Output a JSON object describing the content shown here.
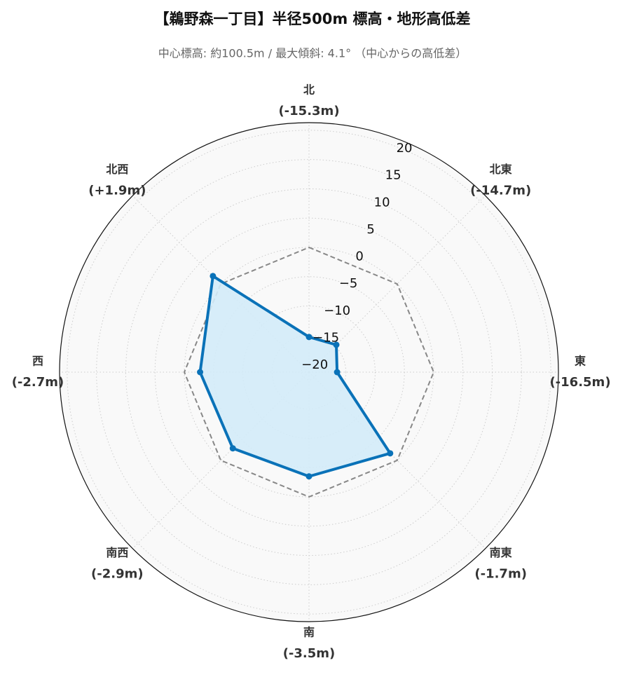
{
  "chart_data": {
    "type": "radar",
    "title": "【鵜野森一丁目】半径500m 標高・地形高低差",
    "subtitle": "中心標高: 約100.5m / 最大傾斜: 4.1°  （中心からの高低差）",
    "categories": [
      "北",
      "北東",
      "東",
      "南東",
      "南",
      "南西",
      "西",
      "北西"
    ],
    "series": [
      {
        "color": "#0a72b8",
        "fill": "#d3ebf8",
        "values": [
          -15.3,
          -14.7,
          -16.5,
          -1.7,
          -3.5,
          -2.9,
          -2.7,
          1.9
        ],
        "value_labels": [
          "(-15.3m)",
          "(-14.7m)",
          "(-16.5m)",
          "(-1.7m)",
          "(-3.5m)",
          "(-2.9m)",
          "(-2.7m)",
          "(+1.9m)"
        ]
      }
    ],
    "reference_line": 0,
    "rlim": [
      -21.3,
      21.3
    ],
    "rticks": [
      {
        "value": -20,
        "label": "−20"
      },
      {
        "value": -15,
        "label": "−15"
      },
      {
        "value": -10,
        "label": "−10"
      },
      {
        "value": -5,
        "label": "−5"
      },
      0,
      5,
      10,
      15,
      20
    ],
    "grid": true
  }
}
